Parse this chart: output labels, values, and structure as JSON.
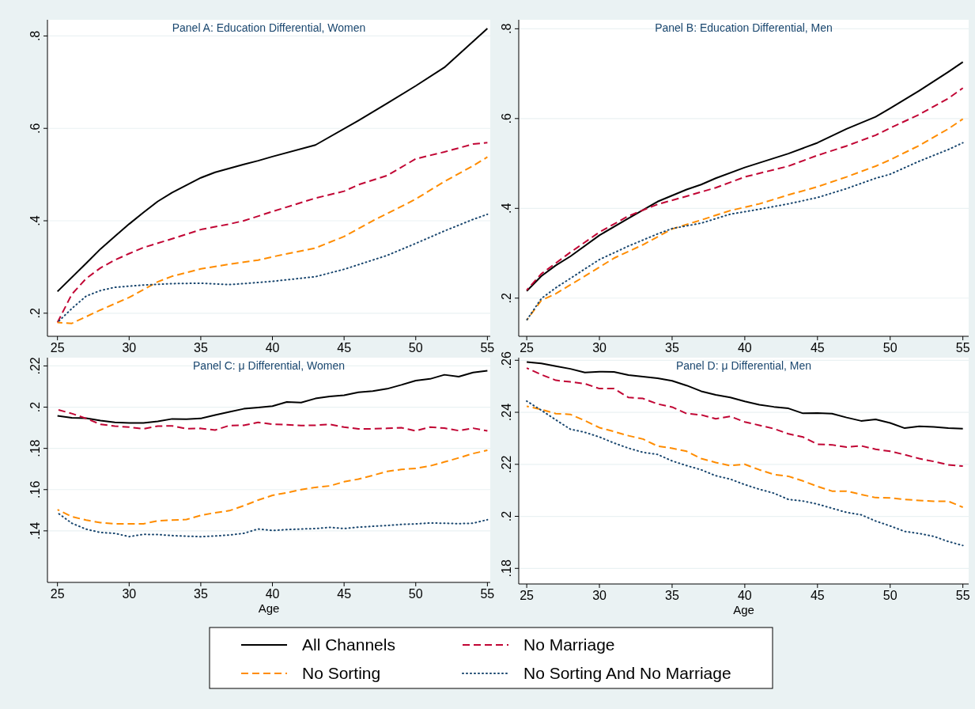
{
  "chart_data": [
    {
      "type": "line",
      "title": "Panel A: Education Differential, Women",
      "xlim": [
        24.3,
        55.2
      ],
      "xticks": [
        25,
        30,
        35,
        40,
        45,
        50,
        55
      ],
      "ylim": [
        0.15,
        0.835
      ],
      "yticks": [
        {
          "value": 0.2,
          "label": ".2"
        },
        {
          "value": 0.4,
          "label": ".4"
        },
        {
          "value": 0.6,
          "label": ".6"
        },
        {
          "value": 0.8,
          "label": ".8"
        }
      ],
      "grid": "y",
      "legend": "bottom",
      "series": [
        {
          "name": "All Channels",
          "color": "#000000",
          "line_style": "solid",
          "x": [
            25,
            27,
            28,
            29,
            30,
            31,
            32,
            33,
            35,
            36,
            38,
            39,
            40,
            43,
            46,
            48,
            50,
            52,
            55
          ],
          "values": [
            0.247,
            0.308,
            0.339,
            0.366,
            0.393,
            0.418,
            0.442,
            0.461,
            0.493,
            0.505,
            0.522,
            0.53,
            0.539,
            0.564,
            0.617,
            0.654,
            0.692,
            0.732,
            0.816
          ]
        },
        {
          "name": "No Marriage",
          "color": "#c10534",
          "line_style": "dashed",
          "x": [
            25,
            26,
            27,
            28,
            29,
            30,
            31,
            33,
            35,
            37,
            38,
            40,
            43,
            45,
            46,
            48,
            50,
            52,
            54,
            55
          ],
          "values": [
            0.18,
            0.241,
            0.275,
            0.298,
            0.315,
            0.329,
            0.342,
            0.361,
            0.381,
            0.393,
            0.4,
            0.42,
            0.449,
            0.464,
            0.478,
            0.498,
            0.534,
            0.549,
            0.566,
            0.569
          ]
        },
        {
          "name": "No Sorting",
          "color": "#ff8c00",
          "line_style": "dashed",
          "x": [
            25,
            26,
            28,
            30,
            32,
            33,
            35,
            37,
            39,
            40,
            43,
            45,
            47,
            49,
            50,
            52,
            54,
            55
          ],
          "values": [
            0.18,
            0.178,
            0.207,
            0.234,
            0.268,
            0.28,
            0.296,
            0.306,
            0.315,
            0.322,
            0.341,
            0.366,
            0.4,
            0.431,
            0.447,
            0.485,
            0.519,
            0.538
          ]
        },
        {
          "name": "No Sorting And No Marriage",
          "color": "#1a476f",
          "line_style": "dotted",
          "x": [
            25,
            26,
            27,
            28,
            29,
            31,
            33,
            35,
            37,
            38,
            40,
            43,
            45,
            46,
            48,
            50,
            52,
            54,
            55
          ],
          "values": [
            0.18,
            0.21,
            0.237,
            0.249,
            0.256,
            0.261,
            0.264,
            0.265,
            0.262,
            0.264,
            0.269,
            0.279,
            0.295,
            0.305,
            0.325,
            0.351,
            0.378,
            0.403,
            0.414
          ]
        }
      ]
    },
    {
      "type": "line",
      "title": "Panel B: Education Differential, Men",
      "xlim": [
        24.45,
        55.4
      ],
      "xticks": [
        25,
        30,
        35,
        40,
        45,
        50,
        55
      ],
      "ylim": [
        0.115,
        0.82
      ],
      "yticks": [
        {
          "value": 0.2,
          "label": ".2"
        },
        {
          "value": 0.4,
          "label": ".4"
        },
        {
          "value": 0.6,
          "label": ".6"
        },
        {
          "value": 0.8,
          "label": ".8"
        }
      ],
      "grid": "y",
      "series": [
        {
          "color": "#000000",
          "line_style": "solid",
          "x": [
            25,
            26,
            27,
            28,
            30,
            32,
            34,
            36,
            37,
            38,
            40,
            43,
            45,
            47,
            49,
            50,
            52,
            54,
            55
          ],
          "values": [
            0.216,
            0.249,
            0.273,
            0.293,
            0.34,
            0.378,
            0.415,
            0.442,
            0.453,
            0.467,
            0.491,
            0.522,
            0.546,
            0.577,
            0.604,
            0.623,
            0.662,
            0.704,
            0.726
          ]
        },
        {
          "color": "#c10534",
          "line_style": "dashed",
          "x": [
            25,
            26,
            28,
            30,
            32,
            34,
            36,
            38,
            40,
            43,
            45,
            47,
            49,
            50,
            52,
            54,
            55
          ],
          "values": [
            0.218,
            0.254,
            0.302,
            0.347,
            0.383,
            0.409,
            0.427,
            0.446,
            0.47,
            0.494,
            0.518,
            0.539,
            0.563,
            0.579,
            0.609,
            0.645,
            0.668
          ]
        },
        {
          "color": "#ff8c00",
          "line_style": "dashed",
          "x": [
            25,
            26,
            27,
            29,
            31,
            33,
            35,
            37,
            39,
            41,
            43,
            45,
            47,
            49,
            50,
            52,
            54,
            55
          ],
          "values": [
            0.151,
            0.195,
            0.21,
            0.249,
            0.289,
            0.319,
            0.354,
            0.374,
            0.395,
            0.41,
            0.43,
            0.448,
            0.47,
            0.494,
            0.508,
            0.54,
            0.577,
            0.599
          ]
        },
        {
          "color": "#1a476f",
          "line_style": "dotted",
          "x": [
            25,
            26,
            27,
            28,
            30,
            32,
            34,
            35,
            37,
            39,
            41,
            43,
            45,
            47,
            49,
            50,
            52,
            54,
            55
          ],
          "values": [
            0.151,
            0.199,
            0.223,
            0.244,
            0.286,
            0.316,
            0.343,
            0.355,
            0.367,
            0.387,
            0.398,
            0.41,
            0.424,
            0.444,
            0.467,
            0.476,
            0.505,
            0.531,
            0.546
          ]
        }
      ]
    },
    {
      "type": "line",
      "title": "Panel C: μ Differential, Women",
      "xlabel": "Age",
      "x": [
        25,
        26,
        27,
        28,
        29,
        30,
        31,
        32,
        33,
        34,
        35,
        36,
        37,
        38,
        39,
        40,
        41,
        42,
        43,
        44,
        45,
        46,
        47,
        48,
        49,
        50,
        51,
        52,
        53,
        54,
        55
      ],
      "xlim": [
        24.3,
        55.2
      ],
      "xticks": [
        25,
        30,
        35,
        40,
        45,
        50,
        55
      ],
      "ylim": [
        0.115,
        0.224
      ],
      "yticks": [
        {
          "value": 0.14,
          "label": ".14"
        },
        {
          "value": 0.16,
          "label": ".16"
        },
        {
          "value": 0.18,
          "label": ".18"
        },
        {
          "value": 0.2,
          "label": ".2"
        },
        {
          "value": 0.22,
          "label": ".22"
        }
      ],
      "grid": "y",
      "series": [
        {
          "color": "#000000",
          "line_style": "solid",
          "values": [
            0.1958,
            0.1948,
            0.1946,
            0.1935,
            0.1926,
            0.1923,
            0.1923,
            0.1931,
            0.1943,
            0.1942,
            0.1945,
            0.1962,
            0.1977,
            0.1992,
            0.1998,
            0.2005,
            0.2025,
            0.2022,
            0.2042,
            0.2052,
            0.2058,
            0.2072,
            0.2078,
            0.2089,
            0.2108,
            0.2129,
            0.2137,
            0.2157,
            0.2148,
            0.2168,
            0.2177
          ]
        },
        {
          "color": "#c10534",
          "line_style": "dashed",
          "values": [
            0.1988,
            0.1969,
            0.1945,
            0.1917,
            0.1908,
            0.1903,
            0.1895,
            0.1908,
            0.1909,
            0.1895,
            0.1897,
            0.1889,
            0.1911,
            0.1912,
            0.1926,
            0.1917,
            0.1915,
            0.1911,
            0.1912,
            0.1917,
            0.1903,
            0.1895,
            0.1895,
            0.1897,
            0.19,
            0.1885,
            0.1903,
            0.1898,
            0.1886,
            0.1898,
            0.1885
          ]
        },
        {
          "color": "#ff8c00",
          "line_style": "dashed",
          "values": [
            0.1503,
            0.1469,
            0.1452,
            0.144,
            0.1434,
            0.1434,
            0.1434,
            0.1449,
            0.1452,
            0.1455,
            0.1475,
            0.1488,
            0.1498,
            0.1522,
            0.1549,
            0.1572,
            0.1585,
            0.16,
            0.1611,
            0.1618,
            0.1638,
            0.1651,
            0.1669,
            0.1688,
            0.1698,
            0.1703,
            0.1715,
            0.1734,
            0.1754,
            0.1775,
            0.1791
          ]
        },
        {
          "color": "#1a476f",
          "line_style": "dotted",
          "values": [
            0.1488,
            0.1437,
            0.1408,
            0.1392,
            0.1388,
            0.1372,
            0.1383,
            0.1382,
            0.1377,
            0.1374,
            0.1372,
            0.1375,
            0.138,
            0.1388,
            0.1409,
            0.1402,
            0.1406,
            0.1409,
            0.1411,
            0.1417,
            0.1411,
            0.1418,
            0.1422,
            0.1426,
            0.1431,
            0.1434,
            0.1438,
            0.1437,
            0.1435,
            0.1437,
            0.1454
          ]
        }
      ]
    },
    {
      "type": "line",
      "title": "Panel D: μ Differential, Men",
      "xlabel": "Age",
      "x": [
        25,
        26,
        27,
        28,
        29,
        30,
        31,
        32,
        33,
        34,
        35,
        36,
        37,
        38,
        39,
        40,
        41,
        42,
        43,
        44,
        45,
        46,
        47,
        48,
        49,
        50,
        51,
        52,
        53,
        54,
        55
      ],
      "xlim": [
        24.45,
        55.4
      ],
      "xticks": [
        25,
        30,
        35,
        40,
        45,
        50,
        55
      ],
      "ylim": [
        0.174,
        0.261
      ],
      "yticks": [
        {
          "value": 0.18,
          "label": ".18"
        },
        {
          "value": 0.2,
          "label": ".2"
        },
        {
          "value": 0.22,
          "label": ".22"
        },
        {
          "value": 0.24,
          "label": ".24"
        },
        {
          "value": 0.26,
          "label": ".26"
        }
      ],
      "grid": "y",
      "series": [
        {
          "color": "#000000",
          "line_style": "solid",
          "values": [
            0.2593,
            0.2588,
            0.2577,
            0.2567,
            0.2553,
            0.2556,
            0.2555,
            0.2543,
            0.2537,
            0.2531,
            0.2521,
            0.2503,
            0.2481,
            0.2467,
            0.2457,
            0.2442,
            0.2429,
            0.2421,
            0.2415,
            0.2396,
            0.2397,
            0.2395,
            0.238,
            0.2367,
            0.2373,
            0.2359,
            0.2339,
            0.2346,
            0.2344,
            0.2339,
            0.2337
          ]
        },
        {
          "color": "#c10534",
          "line_style": "dashed",
          "values": [
            0.257,
            0.2545,
            0.2523,
            0.2517,
            0.251,
            0.2491,
            0.2491,
            0.2457,
            0.2453,
            0.2432,
            0.242,
            0.2395,
            0.239,
            0.2375,
            0.2384,
            0.2363,
            0.235,
            0.2337,
            0.2317,
            0.2305,
            0.2277,
            0.2275,
            0.2266,
            0.2271,
            0.2258,
            0.225,
            0.2237,
            0.2222,
            0.2211,
            0.2198,
            0.2193
          ]
        },
        {
          "color": "#ff8c00",
          "line_style": "dashed",
          "values": [
            0.2423,
            0.2411,
            0.2395,
            0.2392,
            0.2368,
            0.2341,
            0.2326,
            0.231,
            0.2297,
            0.227,
            0.2262,
            0.225,
            0.2222,
            0.2207,
            0.2195,
            0.22,
            0.2179,
            0.2161,
            0.2154,
            0.2136,
            0.2115,
            0.2097,
            0.2097,
            0.2084,
            0.2072,
            0.2071,
            0.2065,
            0.2061,
            0.2058,
            0.2058,
            0.2035
          ]
        },
        {
          "color": "#1a476f",
          "line_style": "dotted",
          "values": [
            0.2443,
            0.2408,
            0.2371,
            0.2335,
            0.2323,
            0.2305,
            0.2282,
            0.2262,
            0.2246,
            0.2238,
            0.2213,
            0.2195,
            0.2179,
            0.2156,
            0.2143,
            0.2122,
            0.2104,
            0.2089,
            0.2065,
            0.2059,
            0.2047,
            0.2031,
            0.2015,
            0.2006,
            0.1982,
            0.1963,
            0.1942,
            0.1934,
            0.1923,
            0.1903,
            0.1888
          ]
        }
      ]
    }
  ]
}
